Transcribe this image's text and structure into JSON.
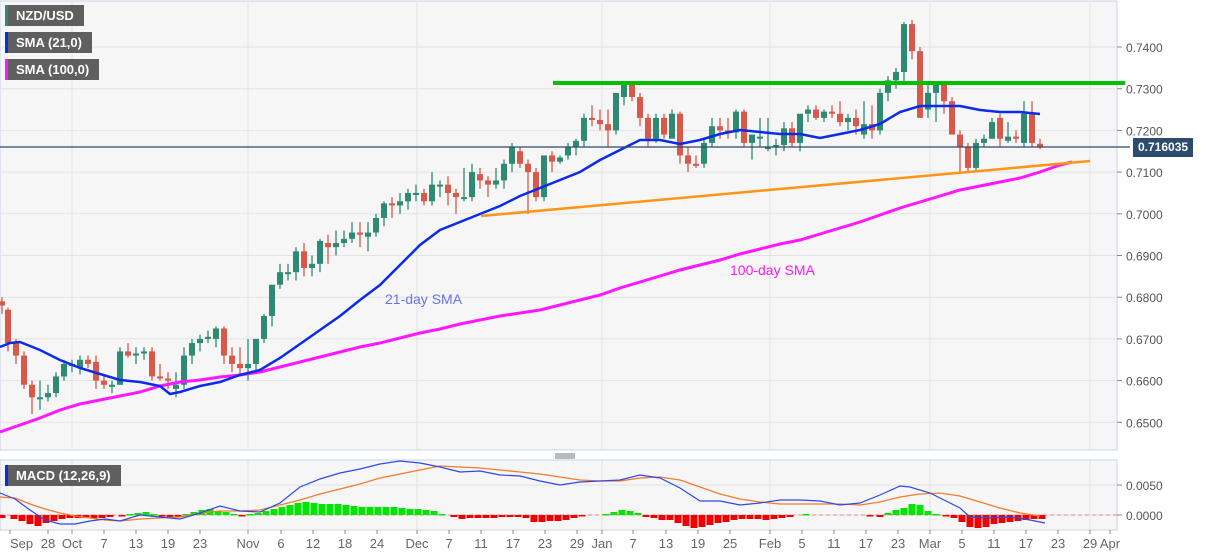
{
  "legend": {
    "symbol": "NZD/USD",
    "sma21": "SMA (21,0)",
    "sma100": "SMA (100,0)",
    "macd": "MACD (12,26,9)"
  },
  "price_tag": "0.716035",
  "colors": {
    "bull": "#2f8a74",
    "bear": "#d9584a",
    "sma21": "#0a2bea",
    "sma100": "#ff17ff",
    "resistance": "#00c000",
    "support": "#ff9514",
    "macd_line": "#2c49ea",
    "signal_line": "#f57c2b",
    "hist_pos": "#00e600",
    "hist_neg": "#f00000",
    "price_line": "#2b4b6f"
  },
  "annotations": {
    "sma21_label": "21-day SMA",
    "sma100_label": "100-day SMA"
  },
  "chart_data": [
    {
      "type": "candlestick",
      "title": "NZD/USD daily",
      "y_axis": {
        "ticks": [
          "0.7400",
          "0.7300",
          "0.7200",
          "0.7100",
          "0.7000",
          "0.6900",
          "0.6800",
          "0.6700",
          "0.6600",
          "0.6500"
        ],
        "range": [
          0.643,
          0.748
        ]
      },
      "x_axis": {
        "ticks": [
          "Sep",
          "28",
          "Oct",
          "7",
          "13",
          "19",
          "23",
          "Nov",
          "6",
          "12",
          "18",
          "24",
          "Dec",
          "7",
          "11",
          "17",
          "23",
          "29",
          "Jan",
          "7",
          "13",
          "19",
          "25",
          "Feb",
          "5",
          "11",
          "17",
          "23",
          "Mar",
          "5",
          "11",
          "17",
          "23",
          "29",
          "Apr"
        ]
      },
      "current_price": 0.716035,
      "series": [
        {
          "name": "SMA 21",
          "approx_values": [
            0.669,
            0.668,
            0.664,
            0.663,
            0.661,
            0.6625,
            0.6625,
            0.666,
            0.672,
            0.68,
            0.688,
            0.695,
            0.699,
            0.705,
            0.708,
            0.712,
            0.716,
            0.7175,
            0.718,
            0.718,
            0.721,
            0.725,
            0.724
          ]
        },
        {
          "name": "SMA 100",
          "approx_values": [
            0.648,
            0.653,
            0.657,
            0.659,
            0.661,
            0.665,
            0.67,
            0.676,
            0.681,
            0.686,
            0.691,
            0.697,
            0.704,
            0.711
          ]
        },
        {
          "name": "Resistance",
          "from": 0.7313,
          "to": 0.7313
        },
        {
          "name": "Support trendline",
          "from": 0.699,
          "to": 0.7125
        }
      ],
      "annotations": [
        "21-day SMA",
        "100-day SMA"
      ]
    },
    {
      "type": "bar+line",
      "title": "MACD (12,26,9)",
      "y_axis": {
        "ticks": [
          "0.0050",
          "0.0000"
        ]
      },
      "series": [
        {
          "name": "MACD"
        },
        {
          "name": "Signal"
        },
        {
          "name": "Histogram"
        }
      ]
    }
  ]
}
